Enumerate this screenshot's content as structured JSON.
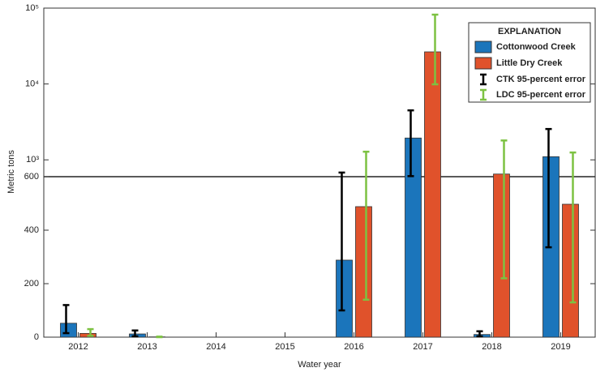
{
  "chart_data": {
    "type": "bar",
    "x_label": "Water year",
    "y_label": "Metric tons",
    "categories": [
      "2012",
      "2013",
      "2014",
      "2015",
      "2016",
      "2017",
      "2018",
      "2019"
    ],
    "yscale": "linear-log",
    "ybreak": 600,
    "ylim": [
      0,
      100000
    ],
    "yticks": [
      0,
      200,
      400,
      600,
      {
        "value": 1000,
        "label": "10³"
      },
      {
        "value": 10000,
        "label": "10⁴"
      },
      {
        "value": 100000,
        "label": "10⁵"
      }
    ],
    "legend_title": "EXPLANATION",
    "legend": "upper right",
    "series": [
      {
        "name": "Cottonwood Creek",
        "color": "#1b75bb",
        "values": [
          52,
          12,
          null,
          null,
          288,
          1940,
          10,
          1100
        ],
        "error_name": "CTK 95-percent error",
        "error_color": "#000000",
        "error_low": [
          15,
          3,
          null,
          null,
          100,
          610,
          3,
          336
        ],
        "error_high": [
          120,
          25,
          null,
          null,
          680,
          4490,
          22,
          2550
        ]
      },
      {
        "name": "Little Dry Creek",
        "color": "#e0522b",
        "values": [
          14,
          1,
          null,
          null,
          488,
          26500,
          650,
          497
        ],
        "error_name": "LDC 95-percent error",
        "error_color": "#7dc242",
        "error_low": [
          5,
          0,
          null,
          null,
          140,
          9900,
          220,
          130
        ],
        "error_high": [
          30,
          2,
          null,
          null,
          1280,
          82000,
          1800,
          1250
        ]
      }
    ]
  }
}
